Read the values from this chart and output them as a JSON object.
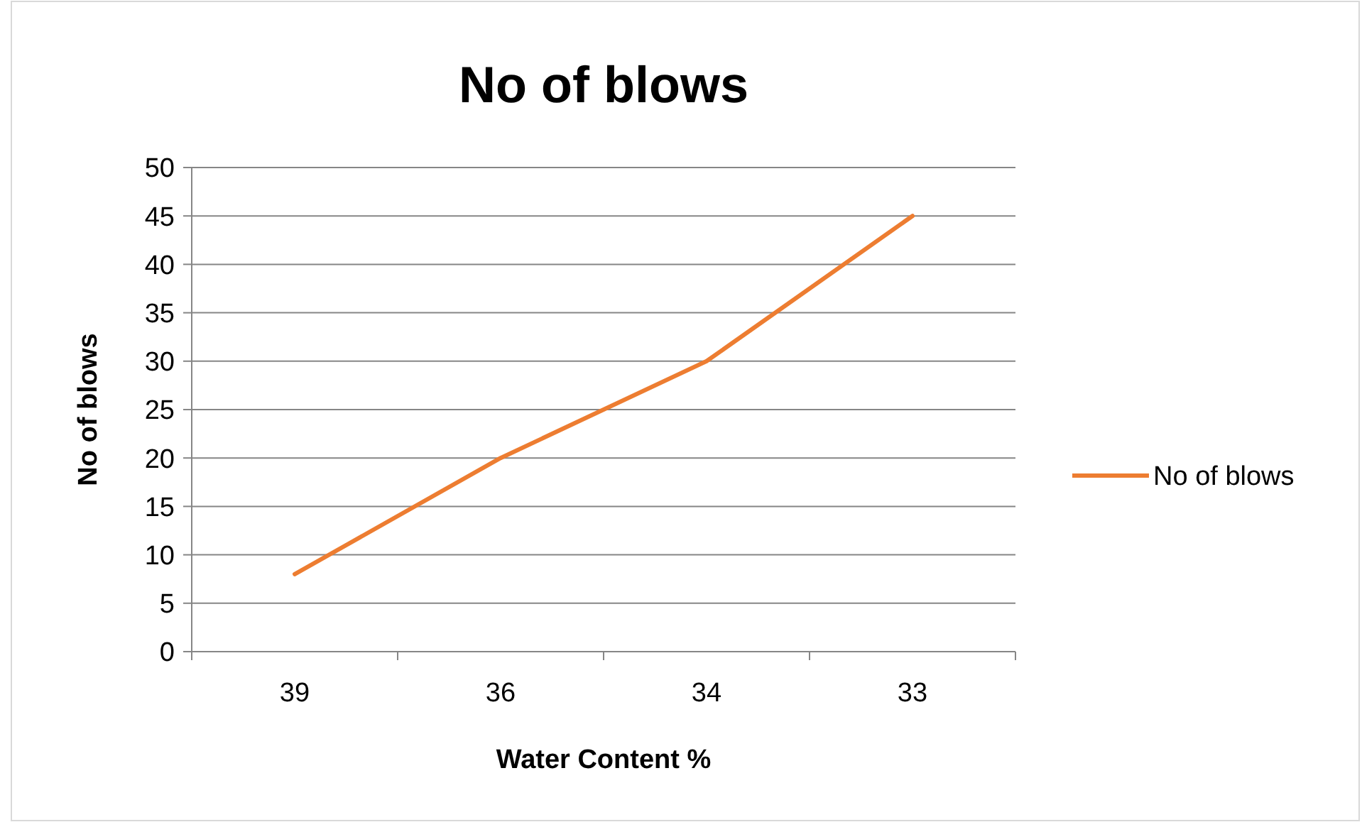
{
  "chart_data": {
    "type": "line",
    "title": "No of blows",
    "xlabel": "Water Content %",
    "ylabel": "No of blows",
    "categories": [
      "39",
      "36",
      "34",
      "33"
    ],
    "series": [
      {
        "name": "No of blows",
        "color": "#ed7d31",
        "values": [
          8,
          20,
          30,
          45
        ]
      }
    ],
    "ylim": [
      0,
      50
    ],
    "yticks": [
      0,
      5,
      10,
      15,
      20,
      25,
      30,
      35,
      40,
      45,
      50
    ],
    "grid": "y",
    "legend": "right",
    "marker": "none",
    "line_style": "solid"
  }
}
